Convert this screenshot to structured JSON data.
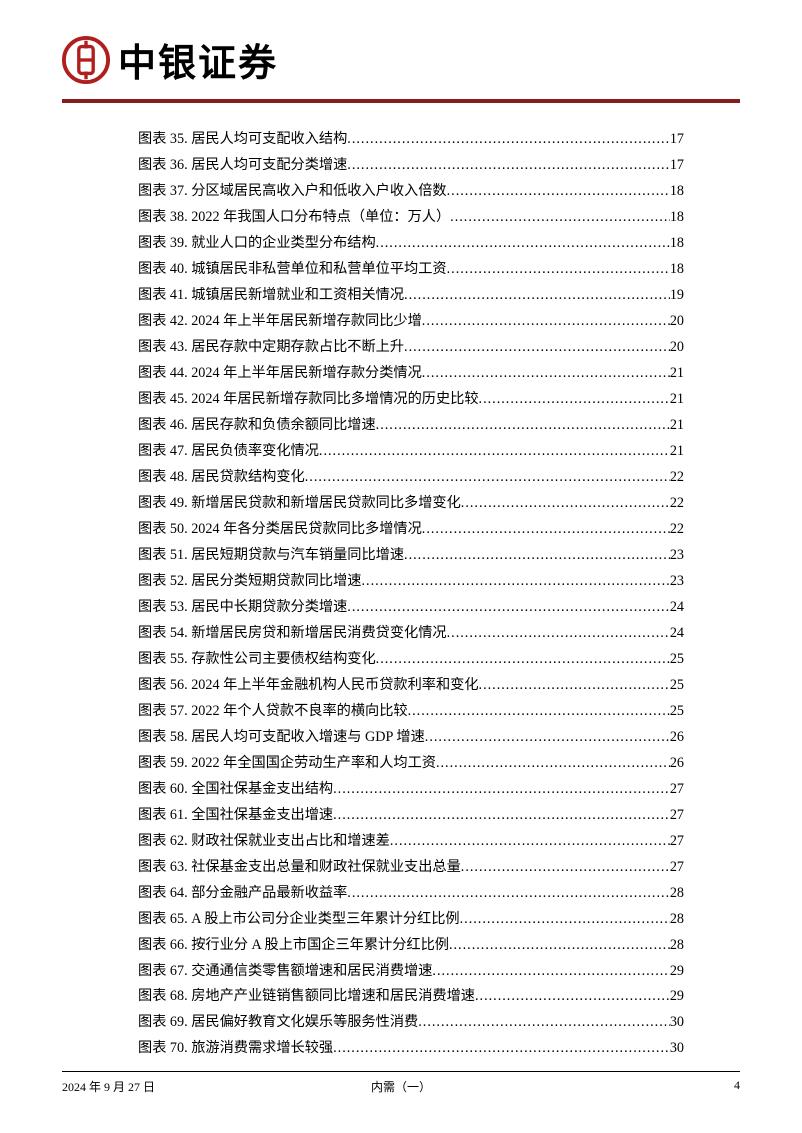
{
  "header": {
    "brand_name": "中银证券",
    "logo_color": "#b01e1e",
    "line_color": "#8b1a1a"
  },
  "toc": {
    "entries": [
      {
        "label": "图表 35. 居民人均可支配收入结构",
        "page": "17"
      },
      {
        "label": "图表 36. 居民人均可支配分类增速",
        "page": "17"
      },
      {
        "label": "图表 37. 分区域居民高收入户和低收入户收入倍数",
        "page": "18"
      },
      {
        "label": "图表 38. 2022 年我国人口分布特点（单位：万人）",
        "page": "18"
      },
      {
        "label": "图表 39. 就业人口的企业类型分布结构",
        "page": "18"
      },
      {
        "label": "图表 40. 城镇居民非私营单位和私营单位平均工资",
        "page": "18"
      },
      {
        "label": "图表 41. 城镇居民新增就业和工资相关情况",
        "page": "19"
      },
      {
        "label": "图表 42. 2024 年上半年居民新增存款同比少增",
        "page": "20"
      },
      {
        "label": "图表 43. 居民存款中定期存款占比不断上升",
        "page": "20"
      },
      {
        "label": "图表 44. 2024 年上半年居民新增存款分类情况",
        "page": "21"
      },
      {
        "label": "图表 45. 2024 年居民新增存款同比多增情况的历史比较",
        "page": "21"
      },
      {
        "label": "图表 46. 居民存款和负债余额同比增速",
        "page": "21"
      },
      {
        "label": "图表 47. 居民负债率变化情况",
        "page": "21"
      },
      {
        "label": "图表 48. 居民贷款结构变化",
        "page": "22"
      },
      {
        "label": "图表 49. 新增居民贷款和新增居民贷款同比多增变化",
        "page": "22"
      },
      {
        "label": "图表 50. 2024 年各分类居民贷款同比多增情况",
        "page": "22"
      },
      {
        "label": "图表 51. 居民短期贷款与汽车销量同比增速",
        "page": "23"
      },
      {
        "label": "图表 52. 居民分类短期贷款同比增速",
        "page": "23"
      },
      {
        "label": "图表 53. 居民中长期贷款分类增速",
        "page": "24"
      },
      {
        "label": "图表 54. 新增居民房贷和新增居民消费贷变化情况",
        "page": "24"
      },
      {
        "label": "图表 55. 存款性公司主要债权结构变化",
        "page": "25"
      },
      {
        "label": "图表 56. 2024 年上半年金融机构人民币贷款利率和变化",
        "page": "25"
      },
      {
        "label": "图表 57. 2022 年个人贷款不良率的横向比较",
        "page": "25"
      },
      {
        "label": "图表 58. 居民人均可支配收入增速与 GDP 增速",
        "page": "26"
      },
      {
        "label": "图表 59. 2022 年全国国企劳动生产率和人均工资",
        "page": "26"
      },
      {
        "label": "图表 60. 全国社保基金支出结构",
        "page": "27"
      },
      {
        "label": "图表 61. 全国社保基金支出增速",
        "page": "27"
      },
      {
        "label": "图表 62. 财政社保就业支出占比和增速差",
        "page": "27"
      },
      {
        "label": "图表 63. 社保基金支出总量和财政社保就业支出总量",
        "page": "27"
      },
      {
        "label": "图表 64. 部分金融产品最新收益率",
        "page": "28"
      },
      {
        "label": "图表 65. A 股上市公司分企业类型三年累计分红比例",
        "page": "28"
      },
      {
        "label": "图表 66. 按行业分 A 股上市国企三年累计分红比例",
        "page": "28"
      },
      {
        "label": "图表 67. 交通通信类零售额增速和居民消费增速",
        "page": "29"
      },
      {
        "label": "图表 68. 房地产产业链销售额同比增速和居民消费增速",
        "page": "29"
      },
      {
        "label": "图表 69. 居民偏好教育文化娱乐等服务性消费",
        "page": "30"
      },
      {
        "label": "图表 70. 旅游消费需求增长较强",
        "page": "30"
      }
    ]
  },
  "footer": {
    "date": "2024 年 9 月 27 日",
    "doc_title": "内需（一）",
    "page_number": "4"
  }
}
